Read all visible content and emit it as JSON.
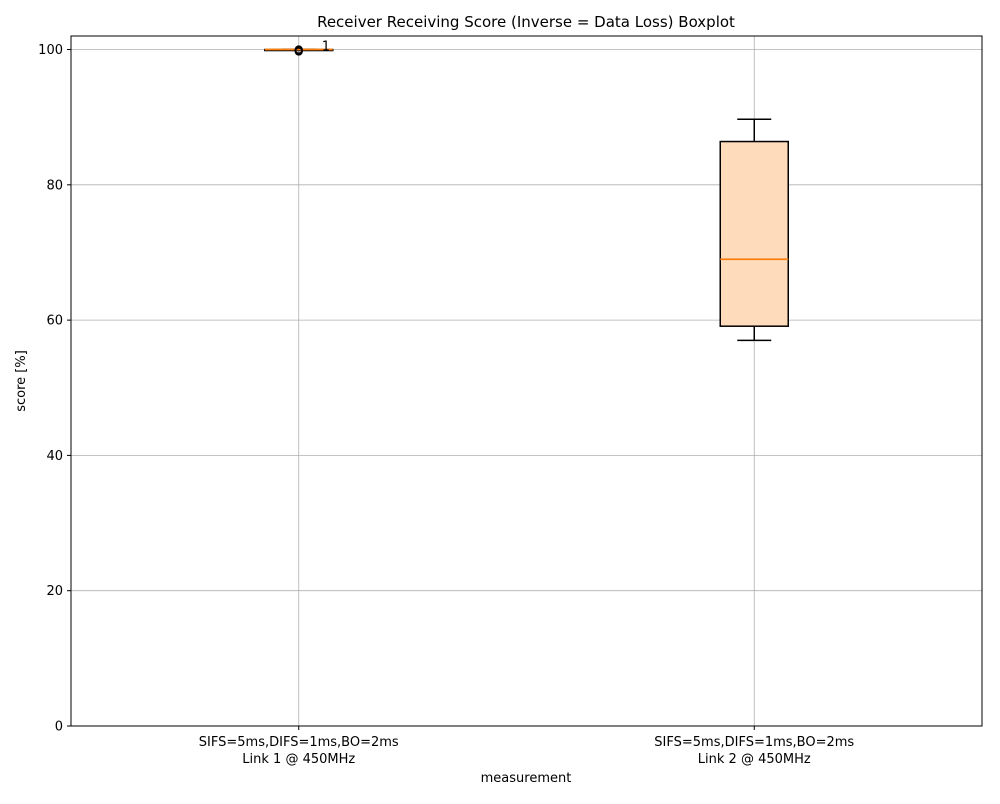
{
  "chart_data": {
    "type": "boxplot",
    "title": "Receiver Receiving Score (Inverse = Data Loss) Boxplot",
    "xlabel": "measurement",
    "ylabel": "score [%]",
    "ylim": [
      0,
      102
    ],
    "yticks": [
      0,
      20,
      40,
      60,
      80,
      100
    ],
    "grid": true,
    "categories": [
      [
        "SIFS=5ms,DIFS=1ms,BO=2ms",
        "Link 1 @ 450MHz"
      ],
      [
        "SIFS=5ms,DIFS=1ms,BO=2ms",
        "Link 2 @ 450MHz"
      ]
    ],
    "boxes": [
      {
        "whisker_low": 100,
        "q1": 100,
        "median": 100,
        "q3": 100,
        "whisker_high": 100,
        "outliers": [
          99.7,
          99.8,
          99.9,
          100
        ],
        "annotation": "1"
      },
      {
        "whisker_low": 57,
        "q1": 59.1,
        "median": 69,
        "q3": 86.4,
        "whisker_high": 89.7,
        "outliers": [],
        "annotation": ""
      }
    ],
    "colors": {
      "box_fill": "#fddbbb",
      "median": "#ff7f0e",
      "grid": "#b0b0b0",
      "outline": "#000000"
    }
  }
}
